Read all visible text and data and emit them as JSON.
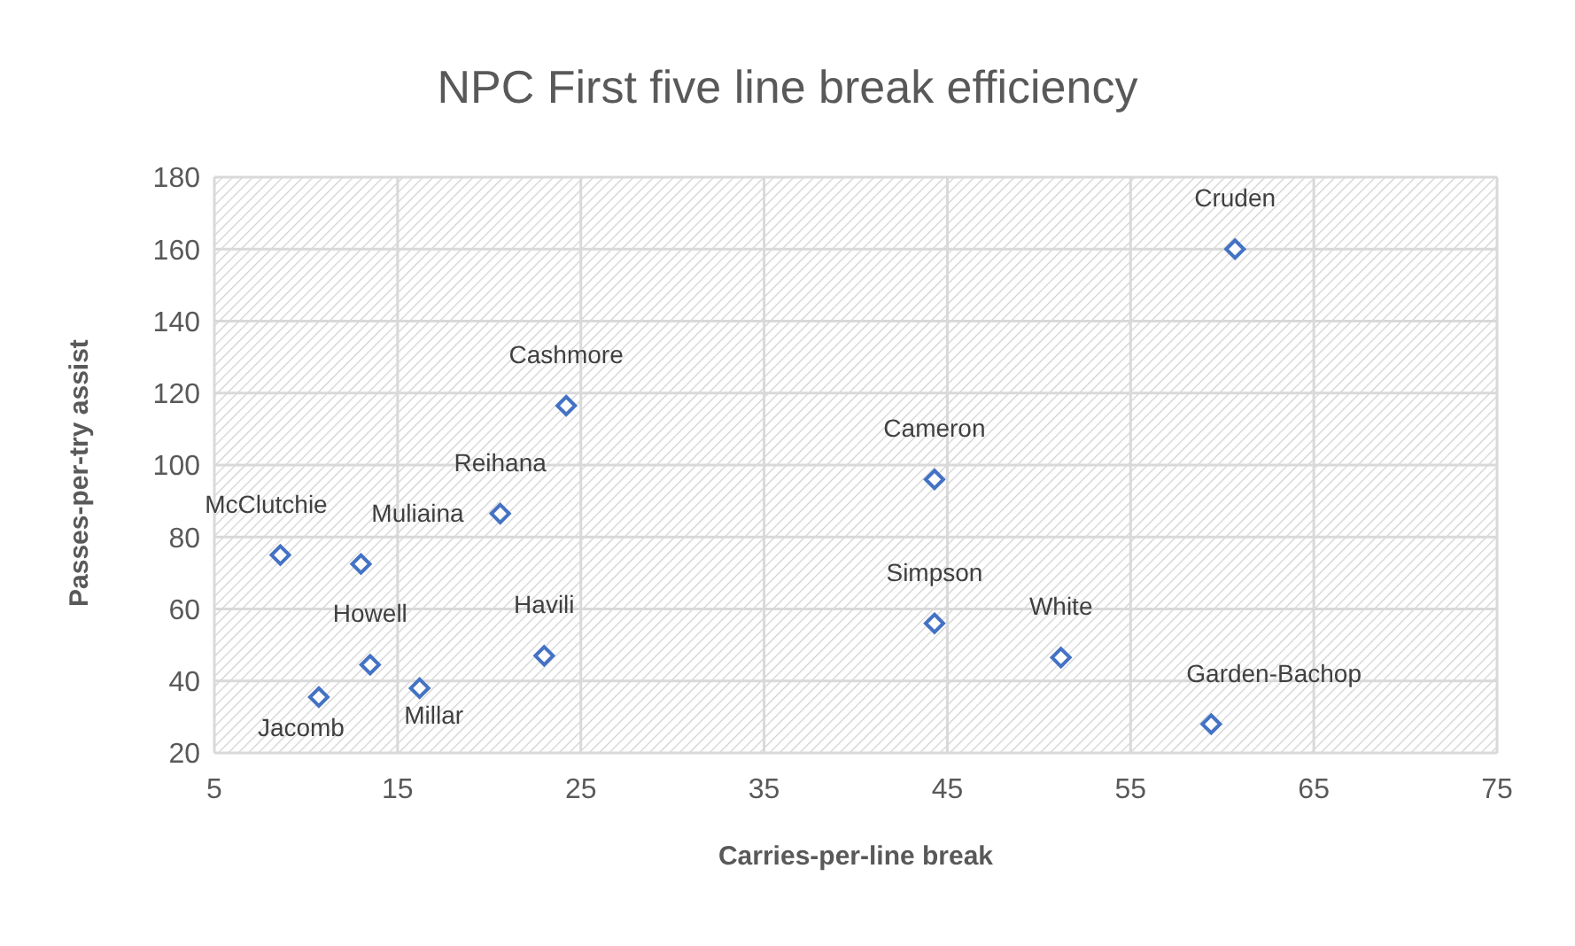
{
  "chart_data": {
    "type": "scatter",
    "title": "NPC First five line break efficiency",
    "xlabel": "Carries-per-line break",
    "ylabel": "Passes-per-try assist",
    "series": [
      {
        "color": "#4472c4",
        "x": [
          60.7,
          24.2,
          44.3,
          20.6,
          8.6,
          13.0,
          44.3,
          51.2,
          23.0,
          13.5,
          16.2,
          10.7,
          59.4
        ],
        "values": [
          160,
          116.5,
          96,
          86.5,
          75,
          72.5,
          56,
          46.5,
          47,
          44.5,
          38,
          35.5,
          28
        ],
        "value_labels": [
          "Cruden",
          "Cashmore",
          "Cameron",
          "Reihana",
          "McClutchie",
          "Muliaina",
          "Simpson",
          "White",
          "Havili",
          "Howell",
          "Millar",
          "Jacomb",
          "Garden-Bachop"
        ]
      }
    ],
    "xlim": [
      5,
      75
    ],
    "xticks": [
      5,
      15,
      25,
      35,
      45,
      55,
      65,
      75
    ],
    "ylim": [
      20,
      180
    ],
    "yticks": [
      20,
      40,
      60,
      80,
      100,
      120,
      140,
      160,
      180
    ],
    "grid": true,
    "marker": "diamond",
    "legend": false
  }
}
